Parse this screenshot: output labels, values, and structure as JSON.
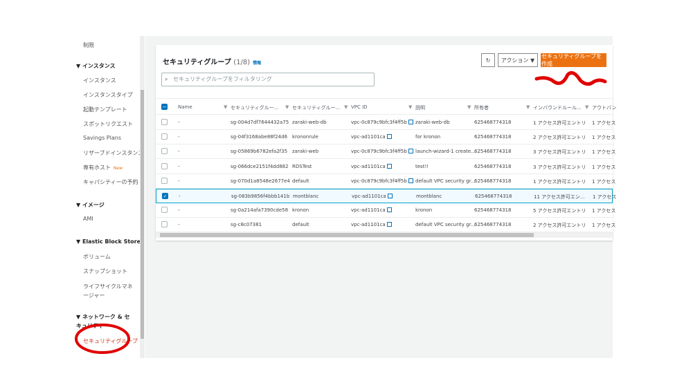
{
  "sidebar": {
    "top_item": "制限",
    "sections": [
      {
        "title": "▼ インスタンス",
        "items": [
          "インスタンス",
          "インスタンスタイプ",
          "起動テンプレート",
          "スポットリクエスト",
          "Savings Plans",
          "リザーブドインスタンス",
          "専有ホスト",
          "キャパシティーの予約"
        ]
      },
      {
        "title": "▼ イメージ",
        "items": [
          "AMI"
        ]
      },
      {
        "title": "▼ Elastic Block Store",
        "items": [
          "ボリューム",
          "スナップショット",
          "ライフサイクルマネージャー"
        ]
      },
      {
        "title": "▼ ネットワーク & セキュリティ",
        "items": [
          "セキュリティグループ"
        ]
      }
    ],
    "new_badge": "New"
  },
  "panel": {
    "title": "セキュリティグループ",
    "count": "(1/8)",
    "info": "情報",
    "refresh_icon": "refresh-icon",
    "actions_label": "アクション ▼",
    "create_label": "セキュリティグループを作成",
    "search_placeholder": "セキュリティグループをフィルタリング"
  },
  "table": {
    "columns": [
      "Name",
      "セキュリティグルー...",
      "セキュリティグルー...",
      "VPC ID",
      "説明",
      "所有者",
      "インバウンドルール...",
      "アウトバン"
    ],
    "rows": [
      {
        "name": "-",
        "sg_id": "sg-004d7df7644432a75",
        "sg_name": "zaraki-web-db",
        "vpc": "vpc-0c879c9bfc3f4ff5b",
        "desc": "zaraki-web-db",
        "owner": "625468774318",
        "inbound": "1 アクセス許可エントリ",
        "outbound": "1 アクセス",
        "selected": false
      },
      {
        "name": "-",
        "sg_id": "sg-04f3168abe88f24d6",
        "sg_name": "krononrule",
        "vpc": "vpc-ad1101ca",
        "desc": "for kronon",
        "owner": "625468774318",
        "inbound": "2 アクセス許可エントリ",
        "outbound": "1 アクセス",
        "selected": false
      },
      {
        "name": "-",
        "sg_id": "sg-05869b6782efa2f35",
        "sg_name": "zaraki-web",
        "vpc": "vpc-0c879c9bfc3f4ff5b",
        "desc": "launch-wizard-1 create...",
        "owner": "625468774318",
        "inbound": "3 アクセス許可エントリ",
        "outbound": "1 アクセス",
        "selected": false
      },
      {
        "name": "-",
        "sg_id": "sg-066dce2151f4dd882",
        "sg_name": "RDSTest",
        "vpc": "vpc-ad1101ca",
        "desc": "test!!",
        "owner": "625468774318",
        "inbound": "3 アクセス許可エントリ",
        "outbound": "1 アクセス",
        "selected": false
      },
      {
        "name": "-",
        "sg_id": "sg-070d1a8548e2677e4",
        "sg_name": "default",
        "vpc": "vpc-0c879c9bfc3f4ff5b",
        "desc": "default VPC security gr...",
        "owner": "625468774318",
        "inbound": "1 アクセス許可エントリ",
        "outbound": "1 アクセス",
        "selected": false
      },
      {
        "name": "-",
        "sg_id": "sg-083b9856f4bbb141b",
        "sg_name": "montblanc",
        "vpc": "vpc-ad1101ca",
        "desc": "montblanc",
        "owner": "625468774318",
        "inbound": "11 アクセス許可エン...",
        "outbound": "1 アクセス",
        "selected": true
      },
      {
        "name": "-",
        "sg_id": "sg-0a214afa7390cde58",
        "sg_name": "kronon",
        "vpc": "vpc-ad1101ca",
        "desc": "kronon",
        "owner": "625468774318",
        "inbound": "5 アクセス許可エントリ",
        "outbound": "1 アクセス",
        "selected": false
      },
      {
        "name": "-",
        "sg_id": "sg-c8c07381",
        "sg_name": "default",
        "vpc": "vpc-ad1101ca",
        "desc": "default VPC security gr...",
        "owner": "625468774318",
        "inbound": "2 アクセス許可エントリ",
        "outbound": "1 アクセス",
        "selected": false
      }
    ]
  },
  "colors": {
    "accent": "#ec7211",
    "link": "#0073bb",
    "annotation": "#e00000"
  }
}
